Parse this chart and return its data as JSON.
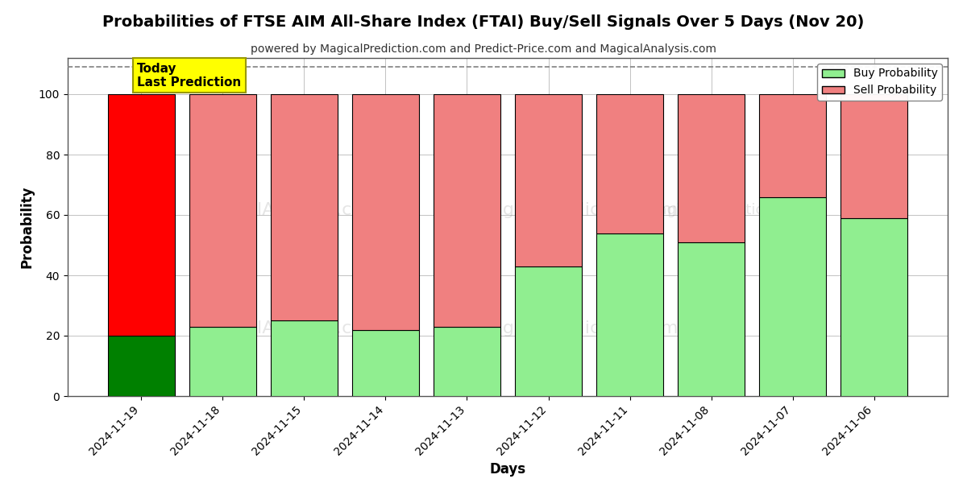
{
  "title": "Probabilities of FTSE AIM All-Share Index (FTAI) Buy/Sell Signals Over 5 Days (Nov 20)",
  "subtitle": "powered by MagicalPrediction.com and Predict-Price.com and MagicalAnalysis.com",
  "xlabel": "Days",
  "ylabel": "Probability",
  "categories": [
    "2024-11-19",
    "2024-11-18",
    "2024-11-15",
    "2024-11-14",
    "2024-11-13",
    "2024-11-12",
    "2024-11-11",
    "2024-11-08",
    "2024-11-07",
    "2024-11-06"
  ],
  "buy_values": [
    20,
    23,
    25,
    22,
    23,
    43,
    54,
    51,
    66,
    59
  ],
  "sell_values": [
    80,
    77,
    75,
    78,
    77,
    57,
    46,
    49,
    34,
    41
  ],
  "today_bar_index": 0,
  "today_buy_color": "#008000",
  "today_sell_color": "#ff0000",
  "normal_buy_color": "#90ee90",
  "normal_sell_color": "#f08080",
  "bar_edge_color": "#000000",
  "today_label_bg": "#ffff00",
  "today_label_text": "Today\nLast Prediction",
  "legend_buy_label": "Buy Probability",
  "legend_sell_label": "Sell Probability",
  "ylim": [
    0,
    112
  ],
  "yticks": [
    0,
    20,
    40,
    60,
    80,
    100
  ],
  "dashed_line_y": 109,
  "grid_color": "#aaaaaa",
  "title_fontsize": 14,
  "subtitle_fontsize": 10,
  "axis_label_fontsize": 12,
  "tick_fontsize": 10,
  "background_color": "#ffffff"
}
